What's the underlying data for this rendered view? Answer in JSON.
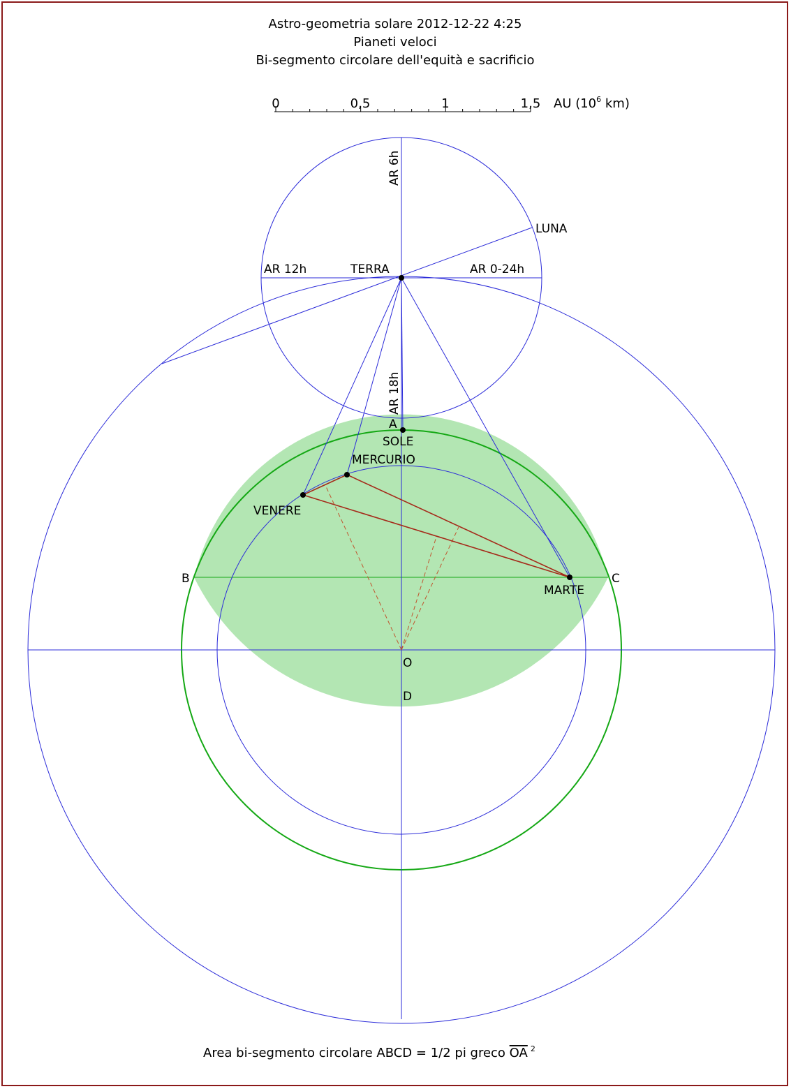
{
  "title": {
    "line1": "Astro-geometria solare 2012-12-22 4:25",
    "line2": "Pianeti veloci",
    "line3": "Bi-segmento circolare dell'equità e sacrificio"
  },
  "scale": {
    "ticks": [
      "0",
      "0,5",
      "1",
      "1,5"
    ],
    "unit_prefix": "AU (10",
    "unit_exp": "6",
    "unit_suffix": " km)"
  },
  "labels": {
    "ar6": "AR 6h",
    "ar12": "AR 12h",
    "ar0": "AR 0-24h",
    "ar18": "AR 18h",
    "terra": "TERRA",
    "luna": "LUNA",
    "sole": "SOLE",
    "mercurio": "MERCURIO",
    "venere": "VENERE",
    "marte": "MARTE",
    "A": "A",
    "B": "B",
    "C": "C",
    "D": "D",
    "O": "O"
  },
  "footer": {
    "prefix": "Area bi-segmento circolare ABCD = 1/2 pi greco ",
    "overlined": "OA",
    "exp": "2"
  },
  "colors": {
    "frame": "#8b1a1a",
    "orbit_lines": "#2b2bd9",
    "circle_green": "#14a814",
    "fill_green": "#b3e6b3",
    "triangle": "#a52a1a"
  }
}
